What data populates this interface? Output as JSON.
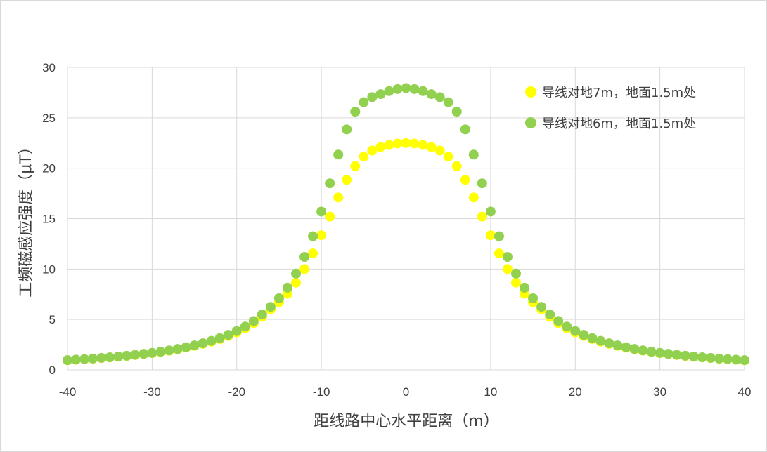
{
  "chart_data": {
    "type": "scatter",
    "title": "",
    "xlabel": "距线路中心水平距离（m）",
    "ylabel": "工频磁感应强度（μT）",
    "xlim": [
      -40,
      40
    ],
    "ylim": [
      0,
      30
    ],
    "x_ticks": [
      -40,
      -30,
      -20,
      -10,
      0,
      10,
      20,
      30,
      40
    ],
    "y_ticks": [
      0,
      5,
      10,
      15,
      20,
      25,
      30
    ],
    "x_tick_labels": [
      "-40",
      "-30",
      "-20",
      "-10",
      "0",
      "10",
      "20",
      "30",
      "40"
    ],
    "y_tick_labels": [
      "0",
      "5",
      "10",
      "15",
      "20",
      "25",
      "30"
    ],
    "grid": true,
    "legend_position": "top-right",
    "series": [
      {
        "name": "导线对地7m，地面1.5m处",
        "color": "#ffff00",
        "x": [
          -40,
          -39,
          -38,
          -37,
          -36,
          -35,
          -34,
          -33,
          -32,
          -31,
          -30,
          -29,
          -28,
          -27,
          -26,
          -25,
          -24,
          -23,
          -22,
          -21,
          -20,
          -19,
          -18,
          -17,
          -16,
          -15,
          -14,
          -13,
          -12,
          -11,
          -10,
          -9,
          -8,
          -7,
          -6,
          -5,
          -4,
          -3,
          -2,
          -1,
          0,
          1,
          2,
          3,
          4,
          5,
          6,
          7,
          8,
          9,
          10,
          11,
          12,
          13,
          14,
          15,
          16,
          17,
          18,
          19,
          20,
          21,
          22,
          23,
          24,
          25,
          26,
          27,
          28,
          29,
          30,
          31,
          32,
          33,
          34,
          35,
          36,
          37,
          38,
          39,
          40
        ],
        "y": [
          0.95,
          1.0,
          1.05,
          1.1,
          1.17,
          1.23,
          1.3,
          1.38,
          1.47,
          1.56,
          1.66,
          1.77,
          1.9,
          2.04,
          2.2,
          2.38,
          2.58,
          2.8,
          3.06,
          3.36,
          3.72,
          4.14,
          4.64,
          5.26,
          6.0,
          6.72,
          7.55,
          8.65,
          10.0,
          11.55,
          13.35,
          15.2,
          17.1,
          18.85,
          20.2,
          21.15,
          21.75,
          22.1,
          22.3,
          22.45,
          22.5,
          22.45,
          22.3,
          22.1,
          21.75,
          21.15,
          20.2,
          18.85,
          17.1,
          15.2,
          13.35,
          11.55,
          10.0,
          8.65,
          7.55,
          6.72,
          6.0,
          5.26,
          4.64,
          4.14,
          3.72,
          3.36,
          3.06,
          2.8,
          2.58,
          2.38,
          2.2,
          2.04,
          1.9,
          1.77,
          1.66,
          1.56,
          1.47,
          1.38,
          1.3,
          1.23,
          1.17,
          1.1,
          1.05,
          1.0,
          0.95
        ]
      },
      {
        "name": "导线对地6m，地面1.5m处",
        "color": "#92d050",
        "x": [
          -40,
          -39,
          -38,
          -37,
          -36,
          -35,
          -34,
          -33,
          -32,
          -31,
          -30,
          -29,
          -28,
          -27,
          -26,
          -25,
          -24,
          -23,
          -22,
          -21,
          -20,
          -19,
          -18,
          -17,
          -16,
          -15,
          -14,
          -13,
          -12,
          -11,
          -10,
          -9,
          -8,
          -7,
          -6,
          -5,
          -4,
          -3,
          -2,
          -1,
          0,
          1,
          2,
          3,
          4,
          5,
          6,
          7,
          8,
          9,
          10,
          11,
          12,
          13,
          14,
          15,
          16,
          17,
          18,
          19,
          20,
          21,
          22,
          23,
          24,
          25,
          26,
          27,
          28,
          29,
          30,
          31,
          32,
          33,
          34,
          35,
          36,
          37,
          38,
          39,
          40
        ],
        "y": [
          0.97,
          1.02,
          1.07,
          1.12,
          1.19,
          1.25,
          1.32,
          1.4,
          1.49,
          1.59,
          1.69,
          1.8,
          1.93,
          2.08,
          2.25,
          2.43,
          2.64,
          2.88,
          3.15,
          3.47,
          3.85,
          4.3,
          4.85,
          5.5,
          6.25,
          7.1,
          8.15,
          9.55,
          11.2,
          13.25,
          15.7,
          18.5,
          21.35,
          23.85,
          25.6,
          26.55,
          27.05,
          27.35,
          27.65,
          27.85,
          27.95,
          27.85,
          27.65,
          27.35,
          27.05,
          26.55,
          25.6,
          23.85,
          21.35,
          18.5,
          15.7,
          13.25,
          11.2,
          9.55,
          8.15,
          7.1,
          6.25,
          5.5,
          4.85,
          4.3,
          3.85,
          3.47,
          3.15,
          2.88,
          2.64,
          2.43,
          2.25,
          2.08,
          1.93,
          1.8,
          1.69,
          1.59,
          1.49,
          1.4,
          1.32,
          1.25,
          1.19,
          1.12,
          1.07,
          1.02,
          0.97
        ]
      }
    ]
  }
}
